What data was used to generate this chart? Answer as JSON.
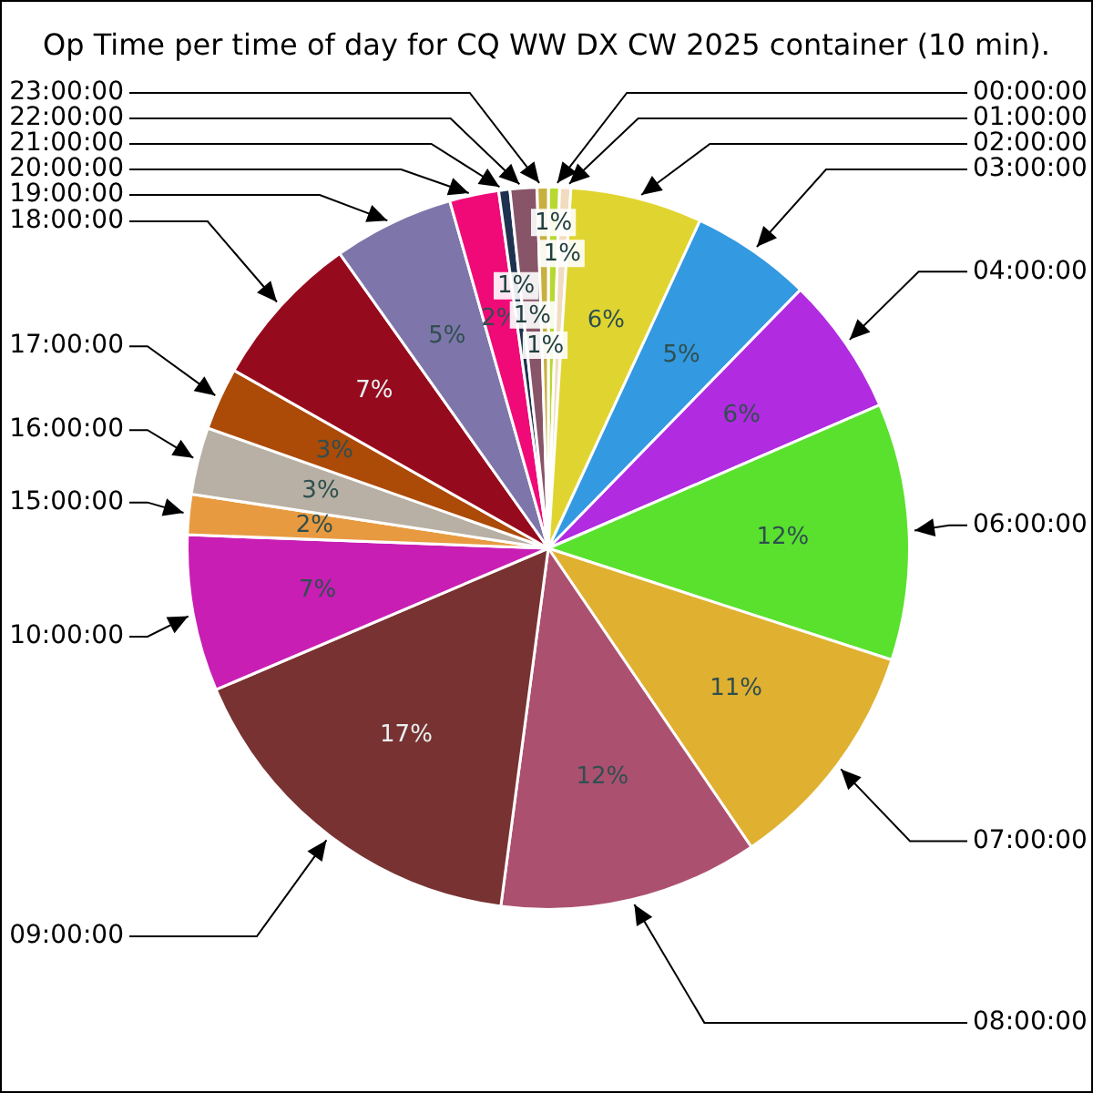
{
  "chart_data": {
    "type": "pie",
    "title": "Op Time per time of day for CQ WW DX CW 2025 container (10 min).",
    "categories": [
      "00:00:00",
      "01:00:00",
      "02:00:00",
      "03:00:00",
      "04:00:00",
      "06:00:00",
      "07:00:00",
      "08:00:00",
      "09:00:00",
      "10:00:00",
      "15:00:00",
      "16:00:00",
      "17:00:00",
      "18:00:00",
      "19:00:00",
      "20:00:00",
      "21:00:00",
      "22:00:00",
      "23:00:00"
    ],
    "values": [
      0.5,
      0.5,
      5.9,
      5.4,
      6.2,
      11.5,
      10.5,
      11.6,
      16.5,
      7,
      1.8,
      3,
      2.8,
      7,
      5.4,
      2.2,
      0.5,
      1.2,
      0.5
    ],
    "colors": [
      "#b8d830",
      "#f2dcc0",
      "#e0d530",
      "#3399e0",
      "#b12be0",
      "#5ae12e",
      "#e0b030",
      "#ac5070",
      "#783232",
      "#c81eb4",
      "#e89a40",
      "#b8b0a4",
      "#ac4a08",
      "#960a1e",
      "#7e76aa",
      "#f00a78",
      "#1e3250",
      "#885468",
      "#c8b040"
    ],
    "value_labels": [
      "1%",
      "1%",
      "6%",
      "5%",
      "6%",
      "12%",
      "11%",
      "12%",
      "17%",
      "7%",
      "2%",
      "3%",
      "3%",
      "7%",
      "5%",
      "2%",
      "1%",
      "1%",
      "1%"
    ]
  }
}
